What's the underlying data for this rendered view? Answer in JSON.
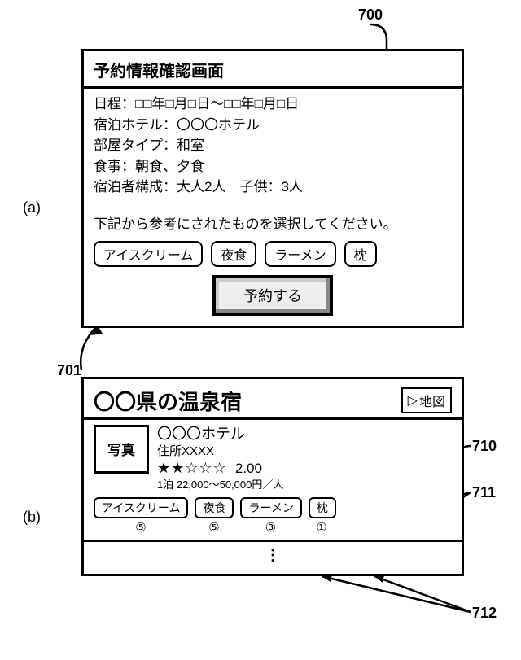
{
  "labels": {
    "fig700": "700",
    "fig701": "701",
    "fig710": "710",
    "fig711": "711",
    "fig712": "712",
    "sub_a": "(a)",
    "sub_b": "(b)"
  },
  "panel_a": {
    "title": "予約情報確認画面",
    "lines": [
      "日程：□□年□月□日～□□年□月□日",
      "宿泊ホテル：〇〇〇ホテル",
      "部屋タイプ：和室",
      "食事：朝食、夕食",
      "宿泊者構成：大人2人　子供：3人"
    ],
    "prompt": "下記から参考にされたものを選択してください。",
    "options": [
      "アイスクリーム",
      "夜食",
      "ラーメン",
      "枕"
    ],
    "reserve": "予約する"
  },
  "panel_b": {
    "header": "〇〇県の温泉宿",
    "map_btn": "地図",
    "photo": "写真",
    "hotel_name": "〇〇〇ホテル",
    "address": "住所XXXX",
    "rating_value": "2.00",
    "stars_filled": 2,
    "stars_total": 5,
    "price_line": "1泊 22,000～50,000円／人",
    "tags": [
      "アイスクリーム",
      "夜食",
      "ラーメン",
      "枕"
    ],
    "counts": [
      "⑤",
      "⑤",
      "③",
      "①"
    ],
    "continuation": "⋮"
  },
  "colors": {
    "border": "#000000",
    "bg": "#ffffff",
    "btn_shadow": "#888888"
  }
}
